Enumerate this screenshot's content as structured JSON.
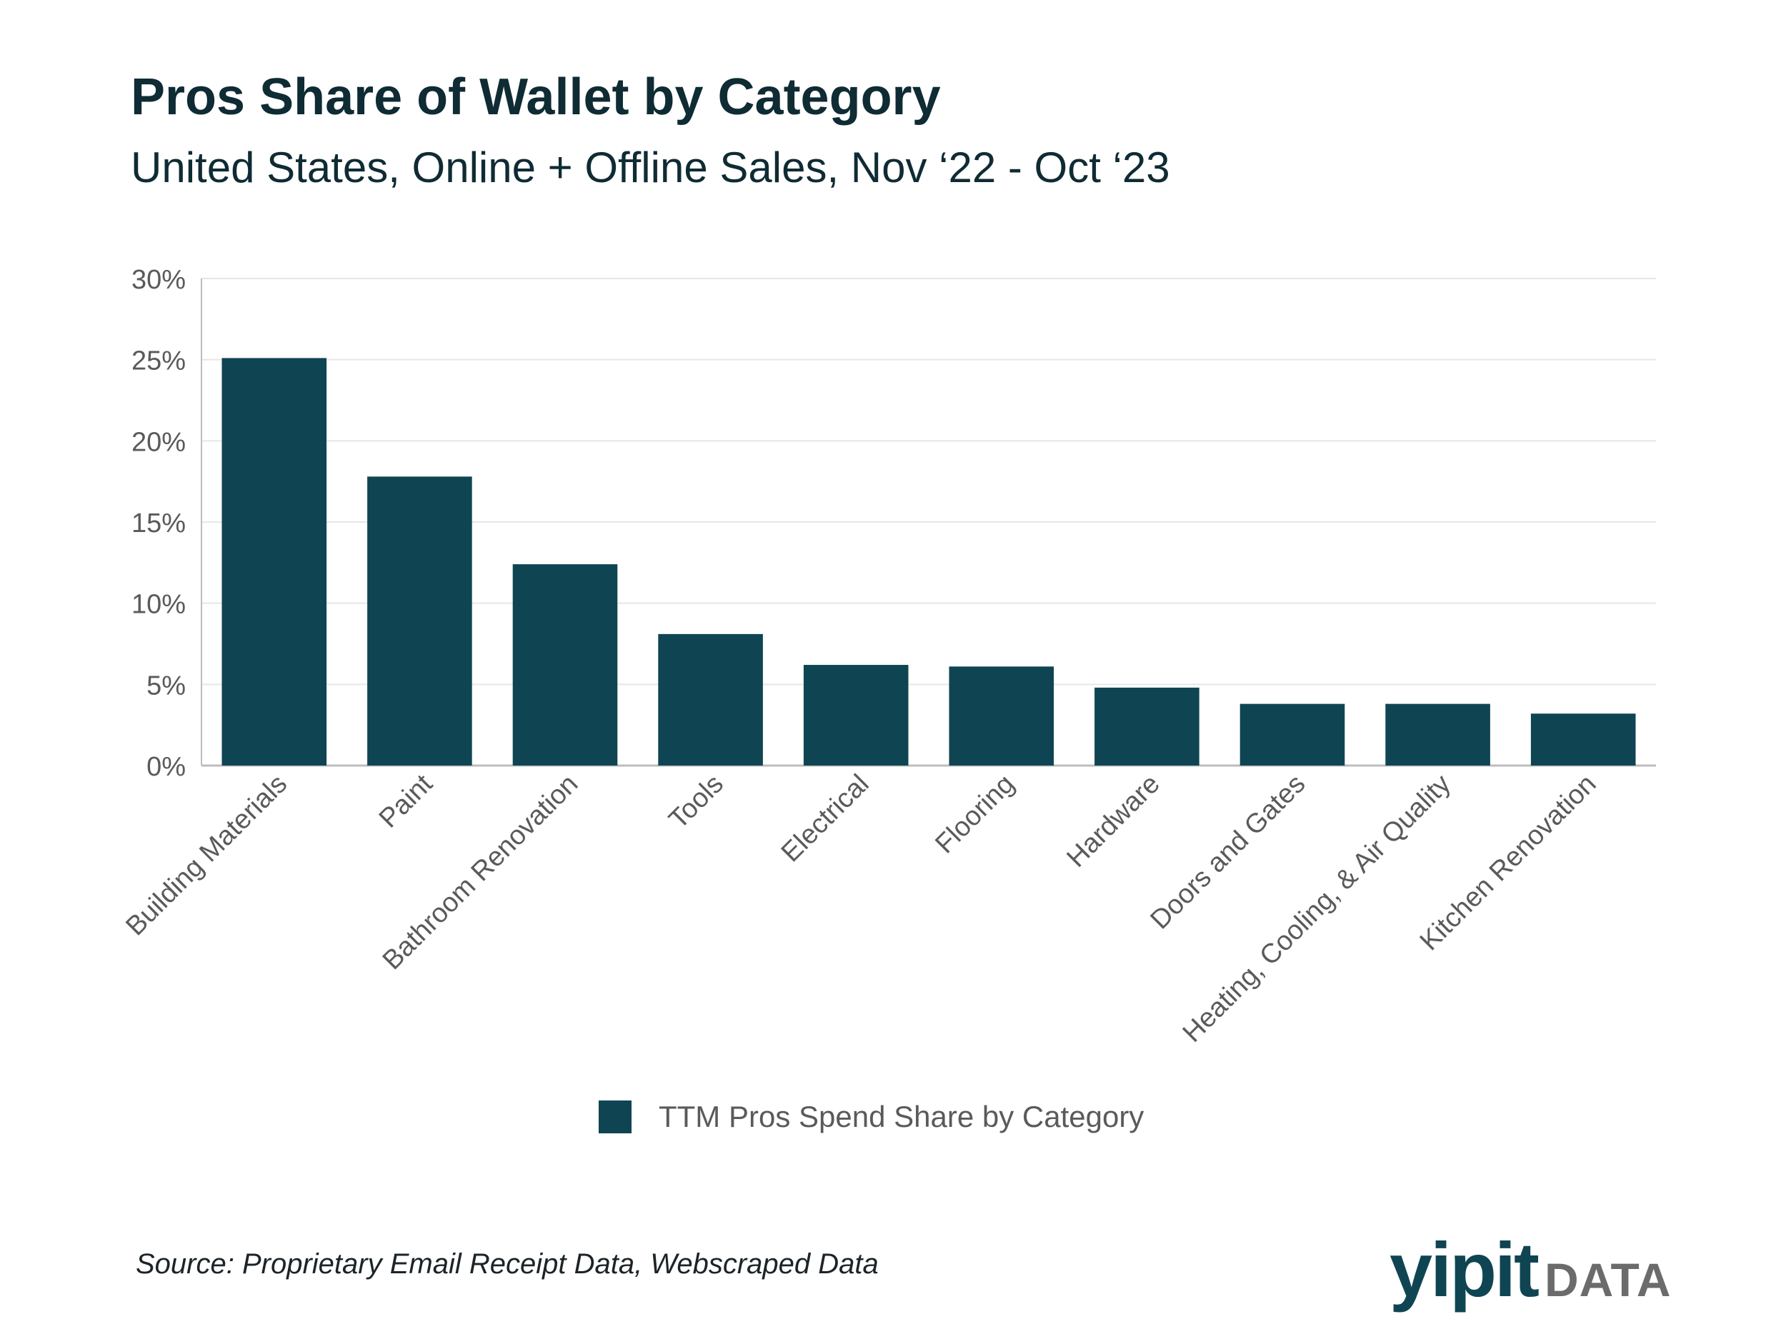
{
  "title": "Pros Share of Wallet by Category",
  "subtitle": "United States, Online + Offline Sales, Nov ‘22 - Oct ‘23",
  "source": "Source: Proprietary Email Receipt Data, Webscraped Data",
  "logo": {
    "primary": "yipit",
    "secondary": "DATA"
  },
  "colors": {
    "bar": "#0f4552",
    "grid": "#e6e6e6",
    "axis": "#bdbdbd",
    "tick_text": "#5a5a5a"
  },
  "chart_data": {
    "type": "bar",
    "title": "Pros Share of Wallet by Category",
    "subtitle": "United States, Online + Offline Sales, Nov ‘22 - Oct ‘23",
    "categories": [
      "Building Materials",
      "Paint",
      "Bathroom Renovation",
      "Tools",
      "Electrical",
      "Flooring",
      "Hardware",
      "Doors and Gates",
      "Heating, Cooling, & Air Quality",
      "Kitchen Renovation"
    ],
    "series": [
      {
        "name": "TTM Pros Spend Share by Category",
        "values": [
          25.1,
          17.8,
          12.4,
          8.1,
          6.2,
          6.1,
          4.8,
          3.8,
          3.8,
          3.2
        ]
      }
    ],
    "ylim": [
      0,
      30
    ],
    "yticks": [
      0,
      5,
      10,
      15,
      20,
      25,
      30
    ],
    "ytick_labels": [
      "0%",
      "5%",
      "10%",
      "15%",
      "20%",
      "25%",
      "30%"
    ],
    "xlabel": "",
    "ylabel": "",
    "grid": true,
    "legend_position": "bottom"
  }
}
